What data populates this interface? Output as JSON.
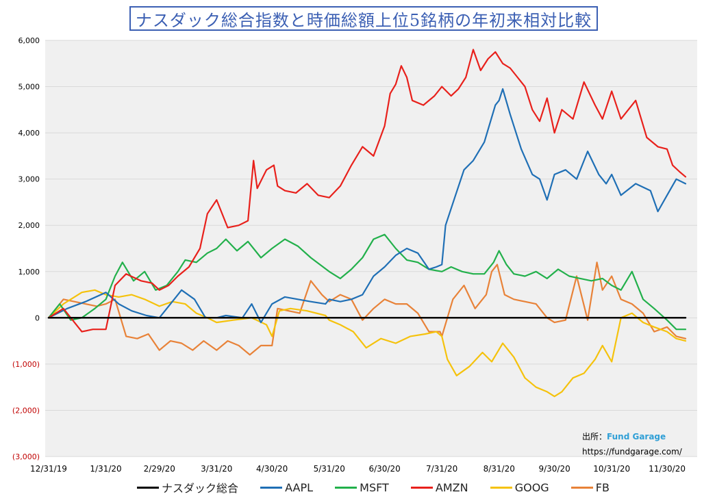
{
  "chart_data": {
    "type": "line",
    "title": "ナスダック総合指数と時価総額上位5銘柄の年初来相対比較",
    "xlabel": "",
    "ylabel": "",
    "ylim": [
      -3000,
      6000
    ],
    "yticks": [
      6000,
      5000,
      4000,
      3000,
      2000,
      1000,
      0,
      -1000,
      -2000,
      -3000
    ],
    "ytick_labels": [
      "6,000",
      "5,000",
      "4,000",
      "3,000",
      "2,000",
      "1,000",
      "0",
      "(1,000)",
      "(2,000)",
      "(3,000)"
    ],
    "xlim": [
      0,
      345
    ],
    "xticks": [
      0,
      31,
      60,
      91,
      121,
      152,
      182,
      213,
      244,
      274,
      305,
      335
    ],
    "xtick_labels": [
      "12/31/19",
      "1/31/20",
      "2/29/20",
      "3/31/20",
      "4/30/20",
      "5/31/20",
      "6/30/20",
      "7/31/20",
      "8/31/20",
      "9/30/20",
      "10/31/20",
      "11/30/20"
    ],
    "x_unit": "days since 12/31/19",
    "grid": true,
    "legend_position": "bottom",
    "series": [
      {
        "name": "ナスダック総合",
        "color": "#000000",
        "x": [
          0,
          345
        ],
        "values": [
          0,
          0
        ]
      },
      {
        "name": "AAPL",
        "color": "#1f6fb5",
        "x": [
          0,
          10,
          20,
          31,
          38,
          45,
          53,
          60,
          66,
          72,
          79,
          85,
          91,
          96,
          105,
          110,
          115,
          121,
          128,
          135,
          142,
          150,
          152,
          158,
          164,
          170,
          176,
          182,
          188,
          194,
          200,
          206,
          210,
          213,
          215,
          220,
          225,
          230,
          236,
          242,
          244,
          246,
          250,
          256,
          262,
          266,
          270,
          274,
          280,
          286,
          292,
          298,
          302,
          305,
          310,
          318,
          326,
          330,
          335,
          340,
          345
        ],
        "values": [
          0,
          200,
          350,
          550,
          300,
          150,
          50,
          0,
          300,
          600,
          400,
          0,
          0,
          50,
          0,
          300,
          -100,
          300,
          450,
          400,
          350,
          300,
          400,
          350,
          400,
          500,
          900,
          1100,
          1350,
          1500,
          1400,
          1050,
          1100,
          1150,
          2000,
          2600,
          3200,
          3400,
          3800,
          4600,
          4700,
          4950,
          4400,
          3650,
          3100,
          3000,
          2550,
          3100,
          3200,
          3000,
          3600,
          3100,
          2900,
          3100,
          2650,
          2900,
          2750,
          2300,
          2650,
          3000,
          2900
        ]
      },
      {
        "name": "MSFT",
        "color": "#22b04b",
        "x": [
          0,
          6,
          12,
          18,
          25,
          31,
          36,
          40,
          46,
          52,
          58,
          64,
          70,
          74,
          80,
          86,
          91,
          96,
          102,
          108,
          115,
          121,
          128,
          135,
          142,
          152,
          158,
          164,
          170,
          176,
          182,
          188,
          194,
          200,
          206,
          213,
          218,
          224,
          230,
          236,
          241,
          244,
          248,
          252,
          258,
          264,
          270,
          276,
          282,
          288,
          294,
          300,
          305,
          310,
          316,
          322,
          328,
          335,
          340,
          345
        ],
        "values": [
          0,
          300,
          -50,
          0,
          200,
          400,
          900,
          1200,
          800,
          1000,
          600,
          700,
          1000,
          1250,
          1200,
          1400,
          1500,
          1700,
          1450,
          1650,
          1300,
          1500,
          1700,
          1550,
          1300,
          1000,
          850,
          1050,
          1300,
          1700,
          1800,
          1500,
          1250,
          1200,
          1050,
          1000,
          1100,
          1000,
          950,
          950,
          1200,
          1450,
          1150,
          950,
          900,
          1000,
          850,
          1050,
          900,
          850,
          800,
          850,
          700,
          600,
          1000,
          400,
          200,
          -50,
          -250,
          -250
        ]
      },
      {
        "name": "AMZN",
        "color": "#e8201b",
        "x": [
          0,
          8,
          14,
          18,
          24,
          31,
          36,
          42,
          50,
          56,
          60,
          65,
          70,
          76,
          82,
          86,
          91,
          97,
          103,
          108,
          111,
          113,
          118,
          122,
          124,
          128,
          134,
          140,
          146,
          152,
          158,
          164,
          170,
          176,
          182,
          185,
          188,
          191,
          194,
          197,
          203,
          209,
          213,
          218,
          222,
          226,
          230,
          234,
          238,
          242,
          246,
          250,
          254,
          258,
          262,
          266,
          270,
          274,
          278,
          284,
          290,
          296,
          300,
          305,
          310,
          318,
          324,
          330,
          335,
          338,
          342,
          345
        ],
        "values": [
          0,
          200,
          -100,
          -300,
          -250,
          -250,
          700,
          950,
          800,
          750,
          600,
          700,
          900,
          1100,
          1500,
          2250,
          2550,
          1950,
          2000,
          2100,
          3400,
          2800,
          3200,
          3300,
          2850,
          2750,
          2700,
          2900,
          2650,
          2600,
          2850,
          3300,
          3700,
          3500,
          4150,
          4850,
          5050,
          5450,
          5200,
          4700,
          4600,
          4800,
          5000,
          4800,
          4950,
          5200,
          5800,
          5350,
          5600,
          5750,
          5500,
          5400,
          5200,
          5000,
          4500,
          4250,
          4750,
          4000,
          4500,
          4300,
          5100,
          4600,
          4300,
          4900,
          4300,
          4700,
          3900,
          3700,
          3650,
          3300,
          3150,
          3050
        ]
      },
      {
        "name": "GOOG",
        "color": "#f5c20c",
        "x": [
          0,
          8,
          18,
          25,
          31,
          38,
          45,
          52,
          60,
          67,
          74,
          80,
          86,
          91,
          100,
          110,
          118,
          121,
          125,
          131,
          140,
          150,
          152,
          158,
          165,
          172,
          180,
          188,
          196,
          204,
          210,
          213,
          216,
          221,
          228,
          235,
          240,
          246,
          252,
          258,
          264,
          270,
          274,
          278,
          284,
          290,
          296,
          300,
          305,
          310,
          316,
          322,
          328,
          335,
          340,
          345
        ],
        "values": [
          0,
          300,
          550,
          600,
          500,
          450,
          500,
          400,
          250,
          350,
          300,
          100,
          0,
          -100,
          -50,
          0,
          -150,
          -400,
          150,
          200,
          150,
          50,
          -50,
          -150,
          -300,
          -650,
          -450,
          -550,
          -400,
          -350,
          -300,
          -400,
          -900,
          -1250,
          -1050,
          -750,
          -950,
          -550,
          -850,
          -1300,
          -1500,
          -1600,
          -1700,
          -1600,
          -1300,
          -1200,
          -900,
          -600,
          -950,
          0,
          100,
          -100,
          -200,
          -300,
          -450,
          -500
        ]
      },
      {
        "name": "FB",
        "color": "#e88238",
        "x": [
          0,
          8,
          14,
          20,
          26,
          31,
          36,
          42,
          48,
          54,
          60,
          66,
          72,
          78,
          84,
          91,
          97,
          103,
          109,
          115,
          121,
          124,
          130,
          136,
          142,
          148,
          152,
          158,
          164,
          170,
          176,
          182,
          188,
          194,
          200,
          206,
          212,
          213,
          219,
          225,
          231,
          237,
          240,
          243,
          247,
          252,
          258,
          264,
          270,
          274,
          280,
          286,
          292,
          297,
          300,
          305,
          310,
          316,
          322,
          328,
          335,
          340,
          345
        ],
        "values": [
          0,
          400,
          350,
          300,
          250,
          300,
          400,
          -400,
          -450,
          -350,
          -700,
          -500,
          -550,
          -700,
          -500,
          -700,
          -500,
          -600,
          -800,
          -600,
          -600,
          200,
          150,
          100,
          800,
          500,
          350,
          500,
          400,
          -50,
          200,
          400,
          300,
          300,
          100,
          -300,
          -300,
          -400,
          400,
          700,
          200,
          500,
          1000,
          1150,
          500,
          400,
          350,
          300,
          0,
          -100,
          -50,
          900,
          -50,
          1200,
          600,
          900,
          400,
          300,
          100,
          -300,
          -200,
          -400,
          -450
        ]
      }
    ]
  },
  "source": {
    "label": "出所：",
    "name": "Fund Garage",
    "url": "https://fundgarage.com/"
  }
}
